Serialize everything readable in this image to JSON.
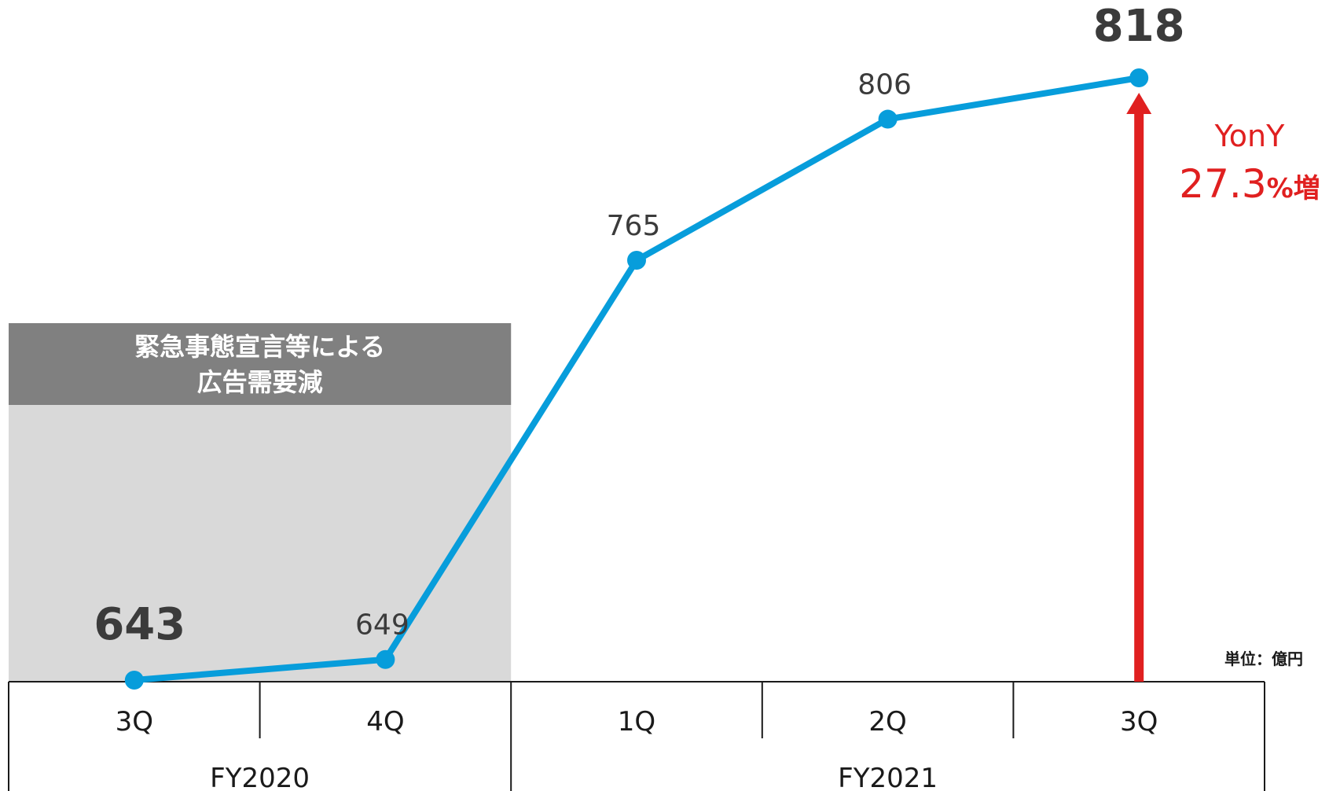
{
  "chart_data": {
    "type": "line",
    "unit_label": "単位：億円",
    "categories": [
      "3Q",
      "4Q",
      "1Q",
      "2Q",
      "3Q"
    ],
    "groups": [
      {
        "label": "FY2020",
        "categories": [
          "3Q",
          "4Q"
        ]
      },
      {
        "label": "FY2021",
        "categories": [
          "1Q",
          "2Q",
          "3Q"
        ]
      }
    ],
    "series": [
      {
        "values": [
          643,
          649,
          765,
          806,
          818
        ],
        "value_labels": [
          "643",
          "649",
          "765",
          "806",
          "818"
        ],
        "emphasized_labels": [
          true,
          false,
          false,
          false,
          true
        ],
        "color": "#079ddb"
      }
    ],
    "shaded_region": {
      "categories": [
        "3Q",
        "4Q"
      ],
      "group": "FY2020",
      "title_lines": [
        "緊急事態宣言等による",
        "広告需要減"
      ],
      "header_color": "#808080",
      "fill_color": "#d9d9d9"
    },
    "annotation": {
      "line1": "YonY",
      "value": "27.3",
      "suffix": "%増",
      "color": "#e02020",
      "arrow_category_index": 4
    },
    "ylim": [
      643,
      818
    ],
    "grid": false,
    "legend": "none"
  }
}
